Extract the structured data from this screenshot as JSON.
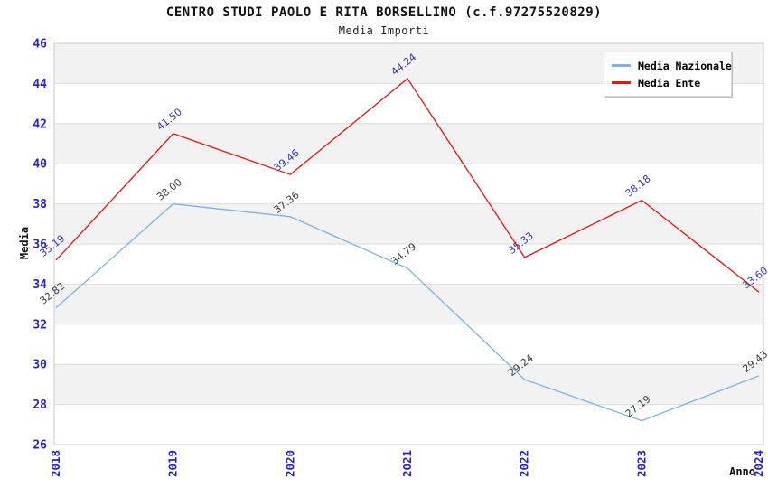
{
  "chart_data": {
    "type": "line",
    "title": "CENTRO STUDI PAOLO E RITA BORSELLINO (c.f.97275520829)",
    "subtitle": "Media Importi",
    "xlabel": "Anno",
    "ylabel": "Media",
    "categories": [
      "2018",
      "2019",
      "2020",
      "2021",
      "2022",
      "2023",
      "2024"
    ],
    "series": [
      {
        "name": "Media Nazionale",
        "color": "#7db2e5",
        "label_color": "#3d3d3d",
        "values": [
          32.82,
          38.0,
          37.36,
          34.79,
          29.24,
          27.19,
          29.43
        ]
      },
      {
        "name": "Media Ente",
        "color": "#ee1111",
        "label_color": "#3434ad",
        "values": [
          35.19,
          41.5,
          39.46,
          44.24,
          35.33,
          38.18,
          33.6
        ]
      }
    ],
    "ylim": [
      26,
      46
    ],
    "ytick_step": 2,
    "yticks": [
      26,
      28,
      30,
      32,
      34,
      36,
      38,
      40,
      42,
      44,
      46
    ],
    "grid": true,
    "legend_position": "top-right",
    "colors": {
      "tick_label": "#2323cb",
      "band_gray": "#f2f2f2",
      "grid_line": "#dddddd",
      "plot_border": "#c9c9c9"
    }
  }
}
